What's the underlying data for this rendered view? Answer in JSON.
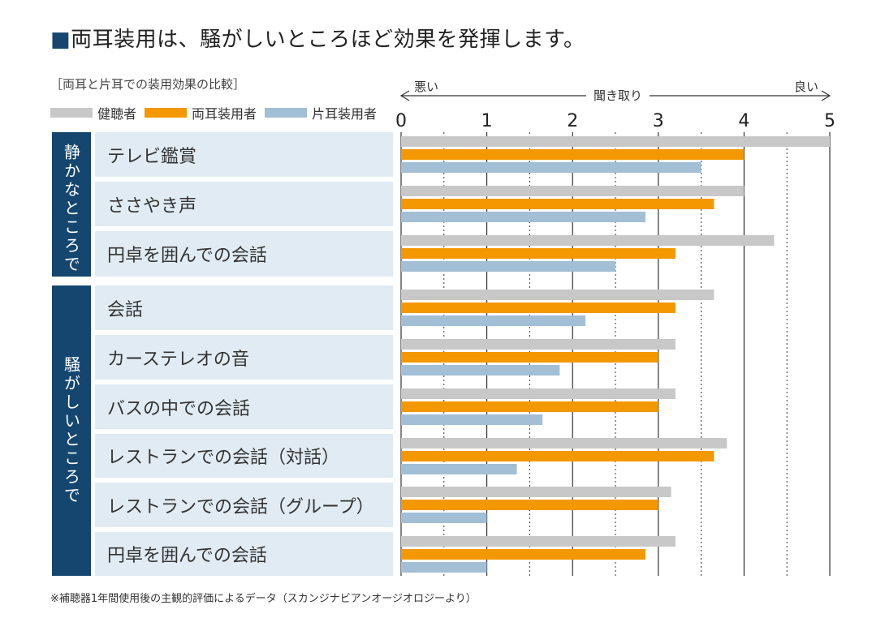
{
  "title": "両耳装用は、騒がしいところほど効果を発揮します。",
  "subtitle": "［両耳と片耳での装用効果の比較］",
  "footnote": "※補聴器1年間使用後の主観的評価によるデータ（スカンジナビアンオージオロジーより）",
  "legend": [
    {
      "name": "健聴者",
      "color": "#c8c8c8"
    },
    {
      "name": "両耳装用者",
      "color": "#f39800"
    },
    {
      "name": "片耳装用者",
      "color": "#a3bfd5"
    }
  ],
  "sections": [
    {
      "label": "静かなところで",
      "rows": [
        0,
        1,
        2
      ]
    },
    {
      "label": "騒がしいところで",
      "rows": [
        3,
        4,
        5,
        6,
        7,
        8
      ]
    }
  ],
  "chart_data": {
    "type": "bar",
    "orientation": "horizontal",
    "axis": {
      "min_label": "悪い",
      "center_label": "聞き取り",
      "max_label": "良い",
      "ticks": [
        0,
        1,
        2,
        3,
        4,
        5
      ],
      "xlim": [
        0,
        5
      ]
    },
    "grid": true,
    "legend_position": "top-left",
    "categories": [
      "テレビ鑑賞",
      "ささやき声",
      "円卓を囲んでの会話",
      "会話",
      "カーステレオの音",
      "バスの中での会話",
      "レストランでの会話（対話）",
      "レストランでの会話（グループ）",
      "円卓を囲んでの会話"
    ],
    "series": [
      {
        "name": "健聴者",
        "color": "#c8c8c8",
        "values": [
          5.0,
          4.0,
          4.35,
          3.65,
          3.2,
          3.2,
          3.8,
          3.15,
          3.2
        ]
      },
      {
        "name": "両耳装用者",
        "color": "#f39800",
        "values": [
          4.0,
          3.65,
          3.2,
          3.2,
          3.0,
          3.0,
          3.65,
          3.0,
          2.85
        ]
      },
      {
        "name": "片耳装用者",
        "color": "#a3bfd5",
        "values": [
          3.5,
          2.85,
          2.5,
          2.15,
          1.85,
          1.65,
          1.35,
          1.0,
          1.0
        ]
      }
    ]
  }
}
